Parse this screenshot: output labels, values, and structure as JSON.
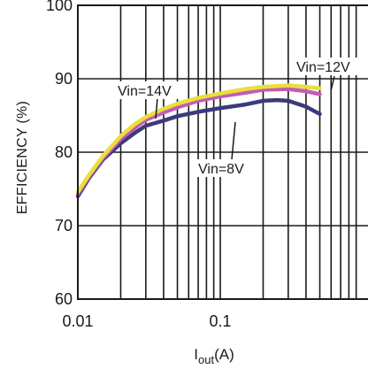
{
  "chart_data": {
    "type": "line",
    "title": "",
    "xlabel": "I",
    "xlabel_sub": "out",
    "xlabel_unit": "(A)",
    "ylabel": "EFFICIENCY (%)",
    "xscale": "log",
    "xlim": [
      0.01,
      1
    ],
    "ylim": [
      60,
      100
    ],
    "grid": true,
    "x_tick_labels": [
      "0.01",
      "0.1"
    ],
    "y_tick_labels": [
      "100",
      "90",
      "80",
      "70",
      "60"
    ],
    "y_ticks": [
      100,
      90,
      80,
      70,
      60
    ],
    "series": [
      {
        "name": "Vin=14V",
        "color": "#e8e03c",
        "points": [
          [
            0.01,
            74.6
          ],
          [
            0.012,
            76.9
          ],
          [
            0.015,
            79.5
          ],
          [
            0.02,
            82.2
          ],
          [
            0.025,
            83.8
          ],
          [
            0.03,
            84.8
          ],
          [
            0.04,
            85.9
          ],
          [
            0.05,
            86.6
          ],
          [
            0.07,
            87.4
          ],
          [
            0.1,
            88.0
          ],
          [
            0.15,
            88.6
          ],
          [
            0.2,
            88.9
          ],
          [
            0.3,
            89.1
          ],
          [
            0.4,
            88.9
          ],
          [
            0.5,
            88.7
          ]
        ]
      },
      {
        "name": "Vin=12V",
        "color": "#c45bb5",
        "points": [
          [
            0.01,
            74.3
          ],
          [
            0.012,
            76.7
          ],
          [
            0.015,
            79.2
          ],
          [
            0.02,
            81.8
          ],
          [
            0.025,
            83.3
          ],
          [
            0.03,
            84.4
          ],
          [
            0.04,
            85.4
          ],
          [
            0.05,
            86.1
          ],
          [
            0.07,
            87.0
          ],
          [
            0.1,
            87.6
          ],
          [
            0.15,
            88.1
          ],
          [
            0.2,
            88.5
          ],
          [
            0.3,
            88.6
          ],
          [
            0.4,
            88.3
          ],
          [
            0.5,
            87.9
          ]
        ]
      },
      {
        "name": "Vin=8V",
        "color": "#3b3a7c",
        "points": [
          [
            0.01,
            74.0
          ],
          [
            0.012,
            76.5
          ],
          [
            0.015,
            79.0
          ],
          [
            0.02,
            81.2
          ],
          [
            0.025,
            82.6
          ],
          [
            0.03,
            83.6
          ],
          [
            0.04,
            84.3
          ],
          [
            0.05,
            84.9
          ],
          [
            0.07,
            85.5
          ],
          [
            0.1,
            86.0
          ],
          [
            0.15,
            86.5
          ],
          [
            0.2,
            87.0
          ],
          [
            0.25,
            87.1
          ],
          [
            0.3,
            87.0
          ],
          [
            0.4,
            86.2
          ],
          [
            0.5,
            85.2
          ]
        ]
      }
    ]
  }
}
